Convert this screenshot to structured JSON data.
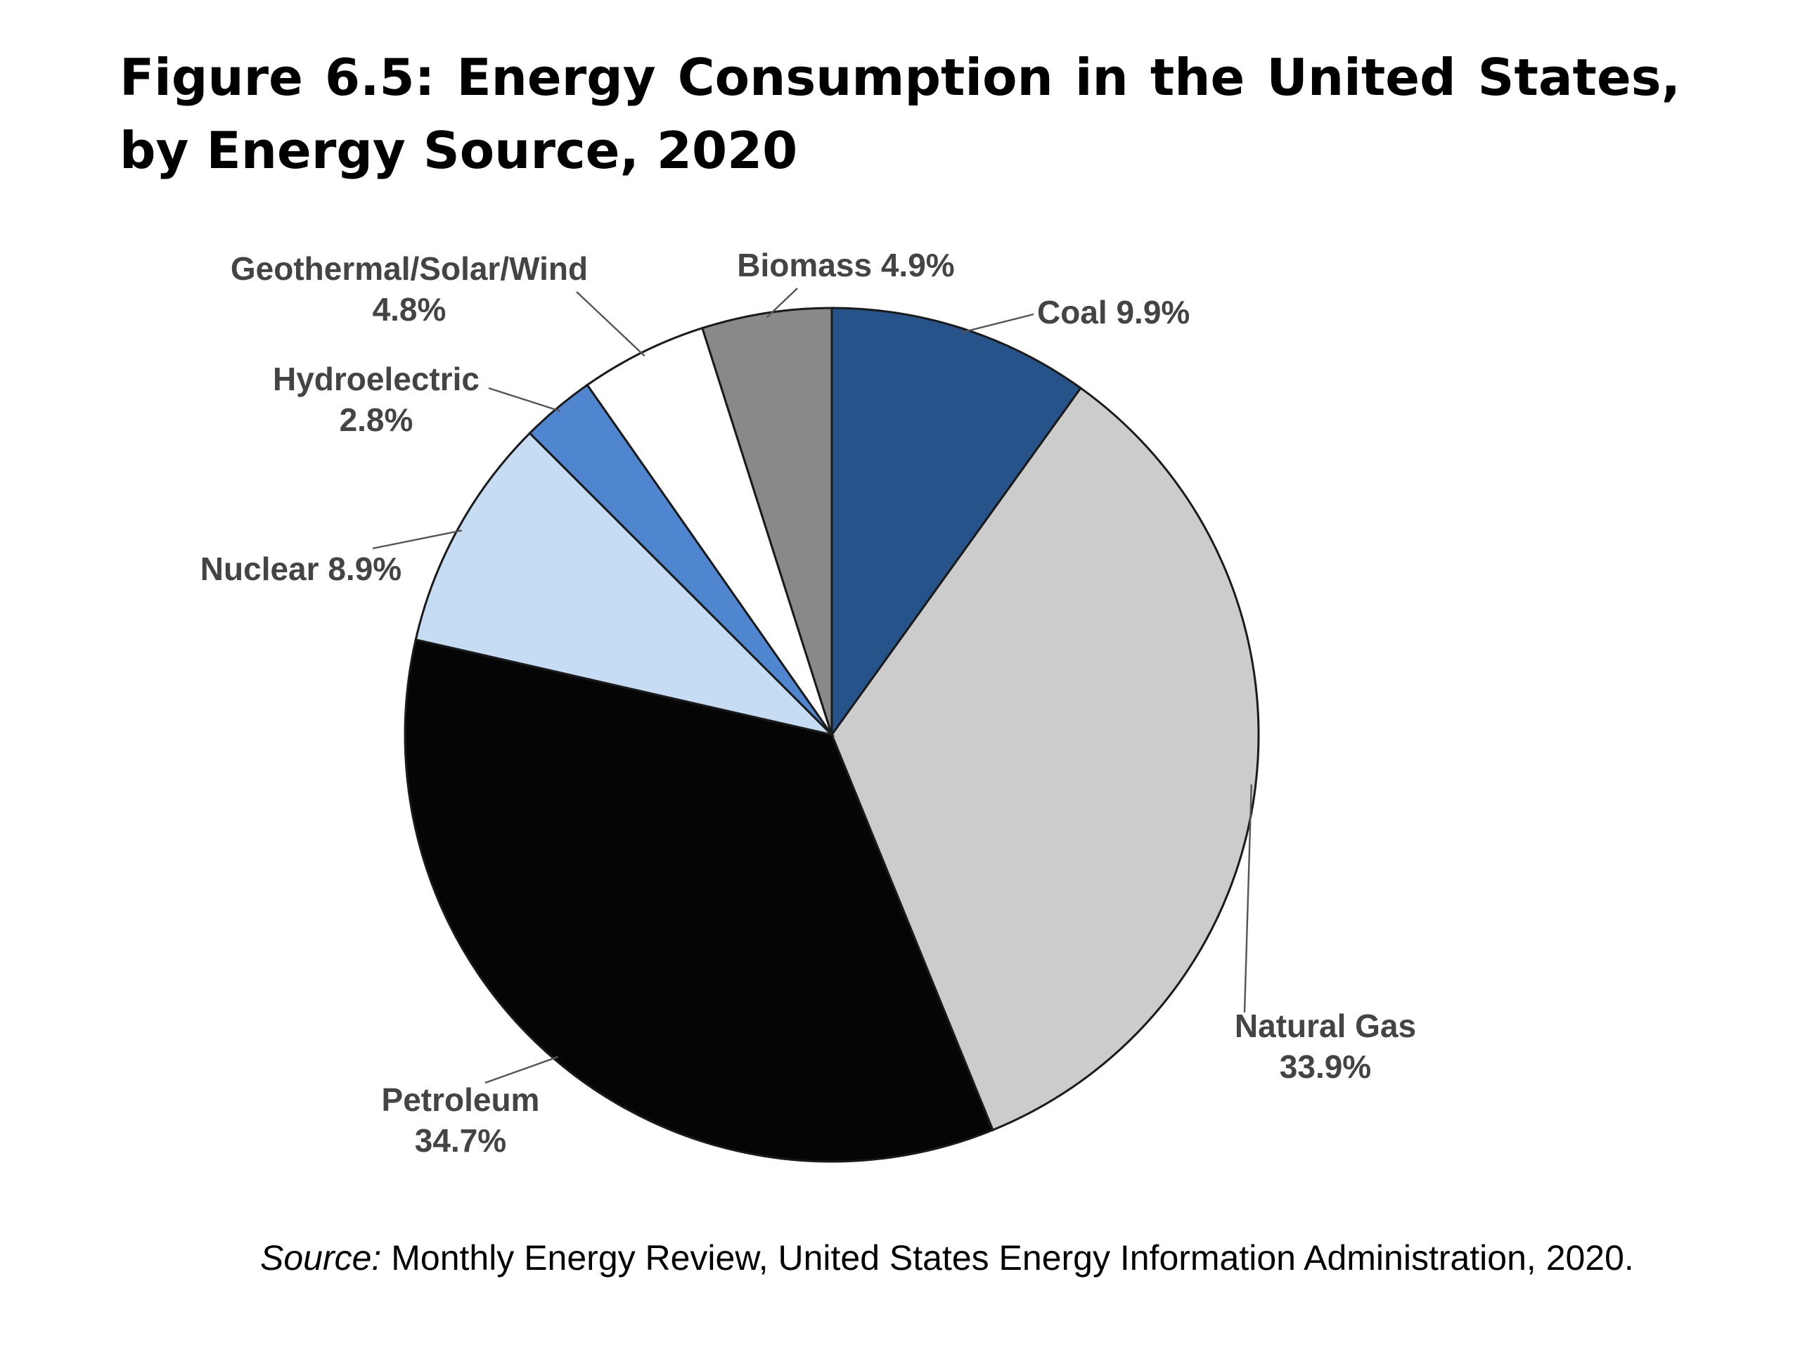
{
  "title": "Figure 6.5: Energy Consumption in the United States, by Energy Source, 2020",
  "source": {
    "label": "Source:",
    "text": "Monthly Energy Review, United States Energy Information Administration, 2020."
  },
  "chart_data": {
    "type": "pie",
    "title": "Figure 6.5: Energy Consumption in the United States, by Energy Source, 2020",
    "unit": "%",
    "start": "12 o'clock",
    "direction": "clockwise",
    "slices": [
      {
        "label": "Coal",
        "value": 9.9,
        "color": "#26548a",
        "label_lines": [
          "Coal 9.9%"
        ]
      },
      {
        "label": "Natural Gas",
        "value": 33.9,
        "color": "#cccccc",
        "label_lines": [
          "Natural Gas",
          "33.9%"
        ]
      },
      {
        "label": "Petroleum",
        "value": 34.7,
        "color": "#050505",
        "label_lines": [
          "Petroleum",
          "34.7%"
        ]
      },
      {
        "label": "Nuclear",
        "value": 8.9,
        "color": "#c5dcf2",
        "label_lines": [
          "Nuclear 8.9%"
        ]
      },
      {
        "label": "Hydroelectric",
        "value": 2.8,
        "color": "#4f86cf",
        "label_lines": [
          "Hydroelectric",
          "2.8%"
        ]
      },
      {
        "label": "Geothermal/Solar/Wind",
        "value": 4.8,
        "color": "#ffffff",
        "label_lines": [
          "Geothermal/Solar/Wind",
          "4.8%"
        ]
      },
      {
        "label": "Biomass",
        "value": 4.9,
        "color": "#898989",
        "label_lines": [
          "Biomass 4.9%"
        ]
      }
    ]
  }
}
